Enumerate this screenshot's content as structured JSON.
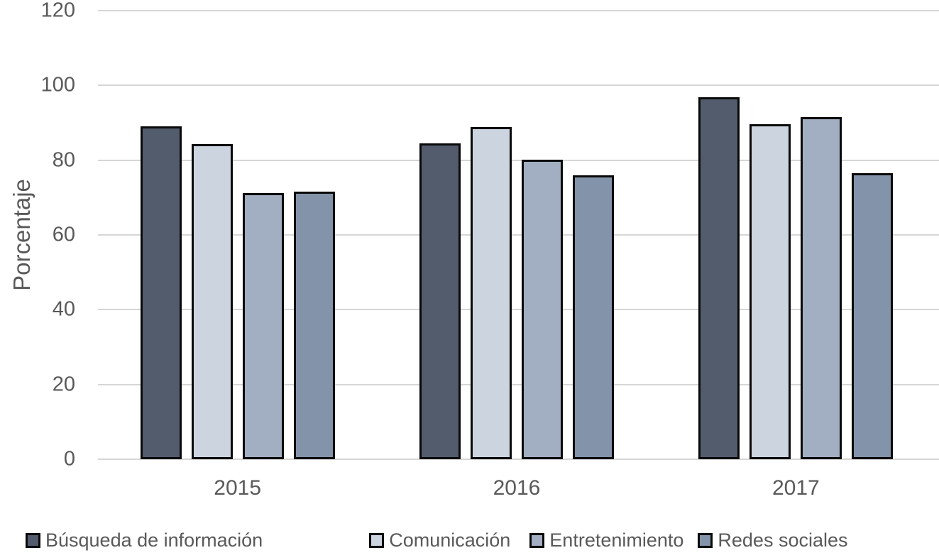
{
  "chart_data": {
    "type": "bar",
    "title": "",
    "xlabel": "",
    "ylabel": "Porcentaje",
    "categories": [
      "2015",
      "2016",
      "2017"
    ],
    "series": [
      {
        "name": "Búsqueda de información",
        "color": "#525c6d",
        "values": [
          89.0,
          84.5,
          96.8
        ]
      },
      {
        "name": "Comunicación",
        "color": "#ccd4e0",
        "values": [
          84.3,
          88.9,
          89.6
        ]
      },
      {
        "name": "Entretenimiento",
        "color": "#a2aec1",
        "values": [
          71.2,
          80.1,
          91.5
        ]
      },
      {
        "name": "Redes sociales",
        "color": "#8393a9",
        "values": [
          71.6,
          76.0,
          76.6
        ]
      }
    ],
    "ylim": [
      0,
      120
    ],
    "yticks": [
      0,
      20,
      40,
      60,
      80,
      100,
      120
    ],
    "grid": true,
    "legend_position": "bottom",
    "bar_border_color": "#0a0a0a",
    "gridline_color": "#d6d6d6",
    "text_color": "#595959",
    "background_color": "#ffffff"
  }
}
